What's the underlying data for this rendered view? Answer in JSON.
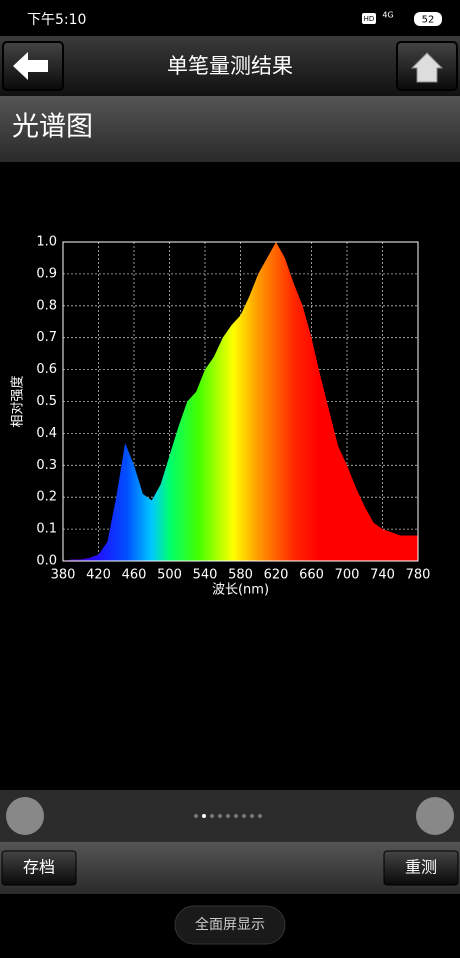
{
  "status_bar": {
    "time": "下午5:10",
    "hd": "HD",
    "network": "4G",
    "battery": "52"
  },
  "header": {
    "title": "单笔量测结果"
  },
  "section": {
    "title": "光谱图"
  },
  "chart_data": {
    "type": "area",
    "x_label": "波长(nm)",
    "y_label": "相对强度",
    "x": [
      380,
      390,
      400,
      410,
      420,
      430,
      440,
      450,
      460,
      470,
      480,
      490,
      500,
      510,
      520,
      530,
      540,
      550,
      560,
      570,
      580,
      590,
      600,
      610,
      620,
      630,
      640,
      650,
      660,
      670,
      680,
      690,
      700,
      710,
      720,
      730,
      740,
      750,
      760,
      770,
      780
    ],
    "values": [
      0.0,
      0.005,
      0.005,
      0.01,
      0.02,
      0.06,
      0.2,
      0.37,
      0.3,
      0.21,
      0.19,
      0.24,
      0.33,
      0.42,
      0.5,
      0.53,
      0.6,
      0.64,
      0.7,
      0.74,
      0.77,
      0.83,
      0.9,
      0.95,
      1.0,
      0.95,
      0.87,
      0.8,
      0.7,
      0.58,
      0.47,
      0.36,
      0.3,
      0.23,
      0.17,
      0.12,
      0.1,
      0.09,
      0.08,
      0.08,
      0.08
    ],
    "xlim": [
      380,
      780
    ],
    "ylim": [
      0,
      1
    ],
    "xticks": [
      380,
      420,
      460,
      500,
      540,
      580,
      620,
      660,
      700,
      740,
      780
    ],
    "yticks": [
      {
        "value": 0,
        "label": "0.0"
      },
      0.1,
      0.2,
      0.3,
      0.4,
      0.5,
      0.6,
      0.7,
      0.8,
      0.9,
      {
        "value": 1,
        "label": "1.0"
      }
    ],
    "grid": true
  },
  "buttons": {
    "save": "存档",
    "remeasure": "重测",
    "fullscreen": "全面屏显示"
  }
}
